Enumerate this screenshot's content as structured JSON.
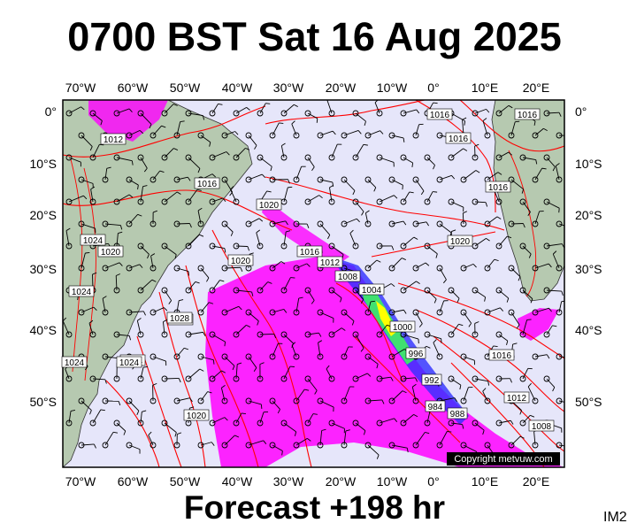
{
  "title": "0700 BST Sat 16 Aug 2025",
  "footer": "Forecast +198 hr",
  "corner_tag": "IM2",
  "copyright": "Copyright metvuw.com",
  "lon_labels": [
    "70°W",
    "60°W",
    "50°W",
    "40°W",
    "30°W",
    "20°W",
    "10°W",
    "0°",
    "10°E",
    "20°E"
  ],
  "lat_labels": [
    "0°",
    "10°S",
    "20°S",
    "30°S",
    "40°S",
    "50°S"
  ],
  "isobar_labels": [
    {
      "text": "1016",
      "key": "a"
    },
    {
      "text": "1016",
      "key": "b"
    },
    {
      "text": "1012",
      "key": "c"
    },
    {
      "text": "1016",
      "key": "d"
    },
    {
      "text": "1016",
      "key": "e"
    },
    {
      "text": "1020",
      "key": "f"
    },
    {
      "text": "1024",
      "key": "g"
    },
    {
      "text": "1020",
      "key": "h"
    },
    {
      "text": "1024",
      "key": "i"
    },
    {
      "text": "1024",
      "key": "j"
    },
    {
      "text": "1016",
      "key": "k"
    },
    {
      "text": "1012",
      "key": "l"
    },
    {
      "text": "1020",
      "key": "m"
    },
    {
      "text": "1008",
      "key": "n"
    },
    {
      "text": "1004",
      "key": "o"
    },
    {
      "text": "1000",
      "key": "p"
    },
    {
      "text": "1028",
      "key": "q"
    },
    {
      "text": "1024",
      "key": "r"
    },
    {
      "text": "1020",
      "key": "s"
    },
    {
      "text": "1016",
      "key": "t"
    },
    {
      "text": "1024",
      "key": "u"
    },
    {
      "text": "1028",
      "key": "v"
    },
    {
      "text": "1020",
      "key": "w"
    },
    {
      "text": "1016",
      "key": "x"
    },
    {
      "text": "1012",
      "key": "y"
    },
    {
      "text": "1008",
      "key": "z"
    },
    {
      "text": "984",
      "key": "aa"
    },
    {
      "text": "988",
      "key": "ab"
    },
    {
      "text": "992",
      "key": "ac"
    },
    {
      "text": "996",
      "key": "ad"
    }
  ],
  "colors": {
    "ocean": "#e6e6fa",
    "land": "#b6c9b0",
    "isobar": "#ff0000",
    "rain_light": "#ff00ff",
    "rain_mid": "#3030ff",
    "rain_heavy": "#40e070",
    "rain_peak": "#ffff00"
  }
}
